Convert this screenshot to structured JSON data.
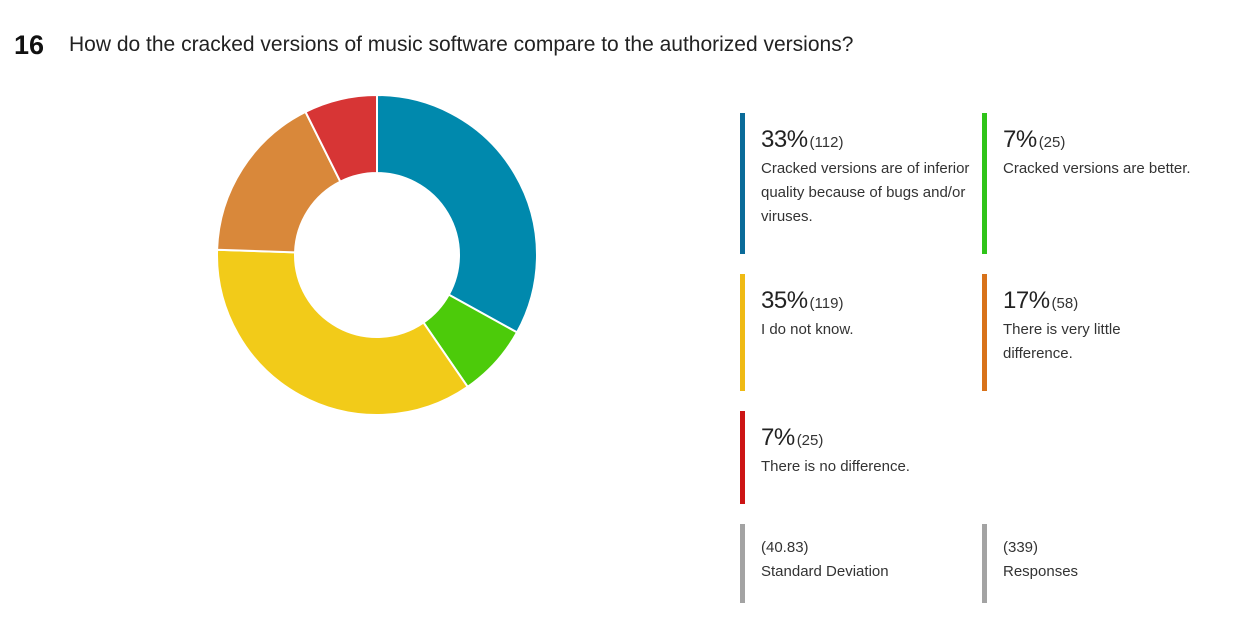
{
  "question": {
    "number": "16",
    "title": "How do the cracked versions of music software compare to the authorized versions?"
  },
  "chart_data": {
    "type": "pie",
    "style": "donut",
    "start": "top",
    "direction": "clockwise",
    "slices": [
      {
        "label": "Cracked versions are of inferior quality because of bugs and/or viruses.",
        "pct": "33%",
        "count": "(112)",
        "value": 112,
        "color": "#0089ad"
      },
      {
        "label": "Cracked versions are better.",
        "pct": "7%",
        "count": "(25)",
        "value": 25,
        "color": "#4ccb0a"
      },
      {
        "label": "I do not know.",
        "pct": "35%",
        "count": "(119)",
        "value": 119,
        "color": "#f2cb19"
      },
      {
        "label": "There is very little difference.",
        "pct": "17%",
        "count": "(58)",
        "value": 58,
        "color": "#d9883a"
      },
      {
        "label": "There is no difference.",
        "pct": "7%",
        "count": "(25)",
        "value": 25,
        "color": "#d73535"
      }
    ]
  },
  "legend_colors": [
    "#0a6b99",
    "#2fc419",
    "#efba14",
    "#d8721a",
    "#cc1414"
  ],
  "stats": {
    "std_dev": {
      "value": "(40.83)",
      "label": "Standard Deviation",
      "color": "#a3a3a3"
    },
    "responses": {
      "value": "(339)",
      "label": "Responses",
      "color": "#a3a3a3"
    }
  }
}
